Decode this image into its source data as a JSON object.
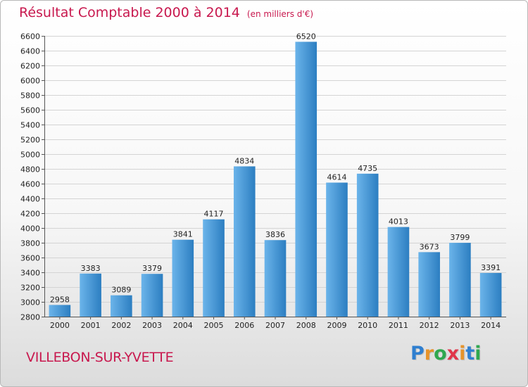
{
  "title": "Résultat Comptable 2000 à 2014",
  "subtitle": "(en milliers d'€)",
  "location": "VILLEBON-SUR-YVETTE",
  "brand": {
    "letters": [
      "P",
      "r",
      "o",
      "x",
      "i",
      "t",
      "i"
    ],
    "colors": [
      "#2f7fd0",
      "#e6932a",
      "#2fa84f",
      "#e0364a",
      "#e6932a",
      "#2f7fd0",
      "#2fa84f"
    ]
  },
  "colors": {
    "accent": "#c8184e",
    "bar_light": "#6bb4ea",
    "bar_dark": "#2c7ec1"
  },
  "chart_data": {
    "type": "bar",
    "categories": [
      "2000",
      "2001",
      "2002",
      "2003",
      "2004",
      "2005",
      "2006",
      "2007",
      "2008",
      "2009",
      "2010",
      "2011",
      "2012",
      "2013",
      "2014"
    ],
    "values": [
      2958,
      3383,
      3089,
      3379,
      3841,
      4117,
      4834,
      3836,
      6520,
      4614,
      4735,
      4013,
      3673,
      3799,
      3391
    ],
    "title": "Résultat Comptable 2000 à 2014",
    "subtitle": "(en milliers d'€)",
    "ylim": [
      2800,
      6600
    ],
    "yticks": [
      2800,
      3000,
      3200,
      3400,
      3600,
      3800,
      4000,
      4200,
      4400,
      4600,
      4800,
      5000,
      5200,
      5400,
      5600,
      5800,
      6000,
      6200,
      6400,
      6600
    ],
    "grid": true,
    "data_labels": true
  }
}
